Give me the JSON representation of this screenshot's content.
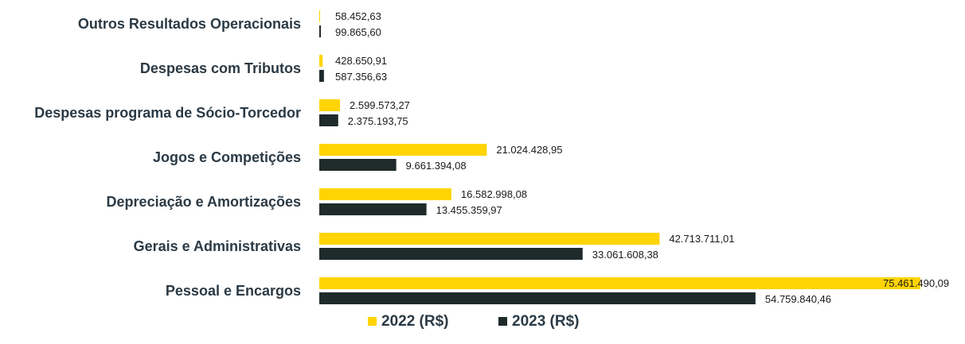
{
  "chart_data": {
    "type": "bar",
    "orientation": "horizontal",
    "categories": [
      "Outros Resultados Operacionais",
      "Despesas com Tributos",
      "Despesas programa de Sócio-Torcedor",
      "Jogos e Competições",
      "Depreciação e Amortizações",
      "Gerais e Administrativas",
      "Pessoal e Encargos"
    ],
    "series": [
      {
        "name": "2022 (R$)",
        "color": "#FFD400",
        "values": [
          58452.63,
          428650.91,
          2599573.27,
          21024428.95,
          16582998.08,
          42713711.01,
          75461490.09
        ],
        "labels": [
          "58.452,63",
          "428.650,91",
          "2.599.573,27",
          "21.024.428,95",
          "16.582.998,08",
          "42.713.711,01",
          "75.461.490,09"
        ]
      },
      {
        "name": "2023 (R$)",
        "color": "#1f2a2a",
        "values": [
          99865.6,
          587356.63,
          2375193.75,
          9661394.08,
          13455359.97,
          33061608.38,
          54759840.46
        ],
        "labels": [
          "99.865,60",
          "587.356,63",
          "2.375.193,75",
          "9.661.394,08",
          "13.455.359,97",
          "33.061.608,38",
          "54.759.840,46"
        ]
      }
    ],
    "xlim": [
      0,
      75461490.09
    ],
    "grid": false,
    "legend_position": "bottom"
  }
}
